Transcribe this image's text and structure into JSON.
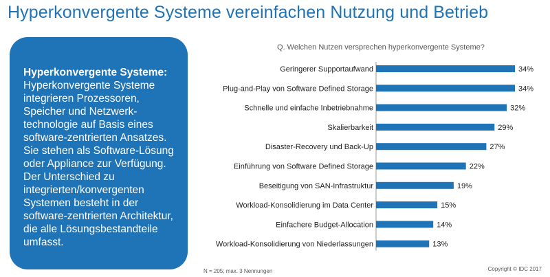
{
  "page": {
    "title": "Hyperkonvergente Systeme vereinfachen Nutzung und Betrieb",
    "footnote": "N = 205; max. 3 Nennungen",
    "copyright": "Copyright © IDC 2017"
  },
  "info_box": {
    "heading": "Hyperkonvergente Systeme:",
    "body": "Hyperkonvergente Systeme integrieren Prozessoren, Speicher und Netzwerk-technologie auf Basis eines software-zentrierten Ansatzes. Sie stehen als Software-Lösung oder Appliance zur Verfügung. Der Unterschied zu integrierten/konvergenten Systemen besteht in der software-zentrierten Architektur, die alle Lösungsbestandteile umfasst."
  },
  "colors": {
    "accent": "#1f73b7",
    "bar": "#1f73b7"
  },
  "chart_data": {
    "type": "bar",
    "orientation": "horizontal",
    "title": "Q. Welchen Nutzen versprechen hyperkonvergente Systeme?",
    "categories": [
      "Geringerer Supportaufwand",
      "Plug-and-Play von Software Defined Storage",
      "Schnelle und einfache Inbetriebnahme",
      "Skalierbarkeit",
      "Disaster-Recovery und Back-Up",
      "Einführung von Software Defined Storage",
      "Beseitigung von SAN-Infrastruktur",
      "Workload-Konsolidierung im Data Center",
      "Einfachere Budget-Allocation",
      "Workload-Konsolidierung von Niederlassungen"
    ],
    "values": [
      34,
      34,
      32,
      29,
      27,
      22,
      19,
      15,
      14,
      13
    ],
    "value_labels": [
      "34%",
      "34%",
      "32%",
      "29%",
      "27%",
      "22%",
      "19%",
      "15%",
      "14%",
      "13%"
    ],
    "xlim": [
      0,
      34
    ],
    "unit": "%",
    "grid": false,
    "legend": "none"
  }
}
